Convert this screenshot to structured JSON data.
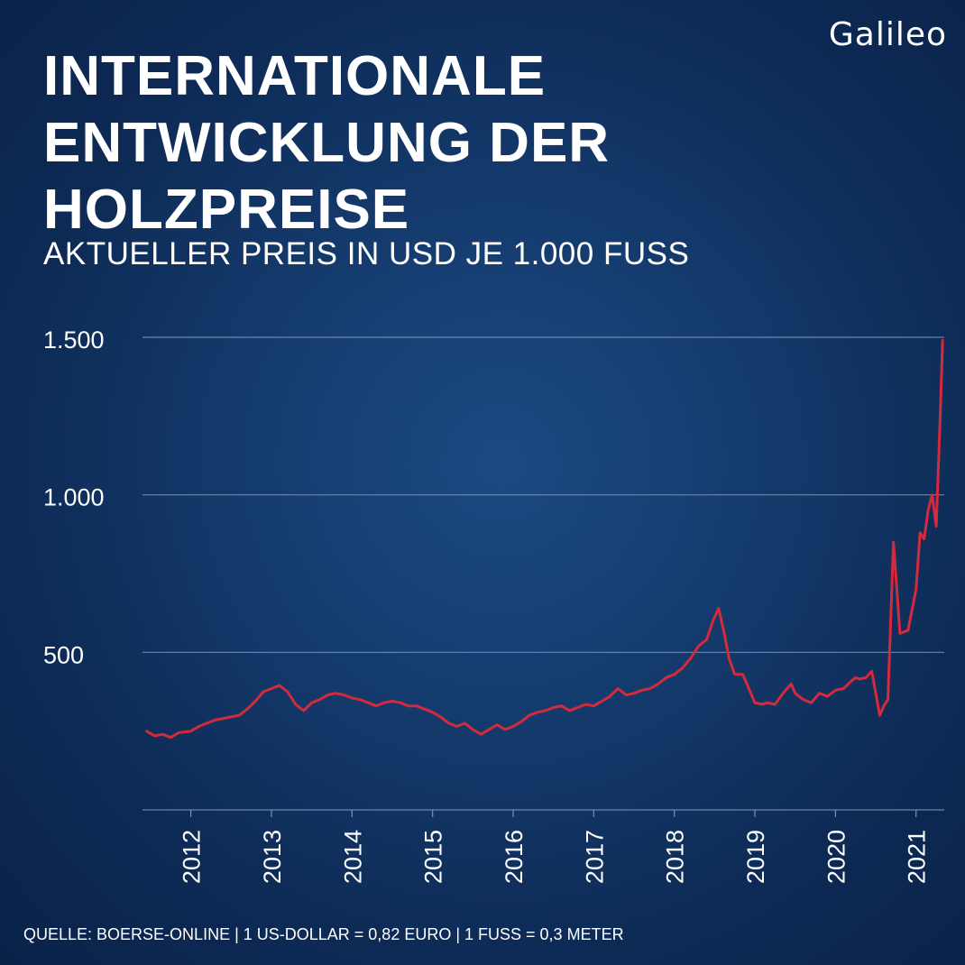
{
  "brand": {
    "logo_text": "Galileo"
  },
  "header": {
    "title_lines": [
      "INTERNATIONALE",
      "ENTWICKLUNG DER",
      "HOLZPREISE"
    ],
    "subtitle": "AKTUELLER PREIS IN USD JE 1.000 FUSS"
  },
  "footer": {
    "source": "QUELLE: BOERSE-ONLINE | 1 US-DOLLAR = 0,82 EURO | 1 FUSS = 0,3 METER"
  },
  "colors": {
    "line": "#d42a3c",
    "grid": "#8aa2c4",
    "text": "#ffffff"
  },
  "chart_data": {
    "type": "line",
    "title": "INTERNATIONALE ENTWICKLUNG DER HOLZPREISE",
    "subtitle": "AKTUELLER PREIS IN USD JE 1.000 FUSS",
    "xlabel": "",
    "ylabel": "",
    "xlim": [
      2011.4,
      2021.35
    ],
    "ylim": [
      0,
      1500
    ],
    "grid": true,
    "y_ticks": [
      {
        "value": 500,
        "label": "500"
      },
      {
        "value": 1000,
        "label": "1.000"
      },
      {
        "value": 1500,
        "label": "1.500"
      }
    ],
    "x_ticks": [
      {
        "value": 2012,
        "label": "2012"
      },
      {
        "value": 2013,
        "label": "2013"
      },
      {
        "value": 2014,
        "label": "2014"
      },
      {
        "value": 2015,
        "label": "2015"
      },
      {
        "value": 2016,
        "label": "2016"
      },
      {
        "value": 2017,
        "label": "2017"
      },
      {
        "value": 2018,
        "label": "2018"
      },
      {
        "value": 2019,
        "label": "2019"
      },
      {
        "value": 2020,
        "label": "2020"
      },
      {
        "value": 2021,
        "label": "2021"
      }
    ],
    "series": [
      {
        "x": [
          2011.45,
          2011.55,
          2011.65,
          2011.75,
          2011.85,
          2012.0,
          2012.1,
          2012.2,
          2012.3,
          2012.4,
          2012.5,
          2012.6,
          2012.7,
          2012.8,
          2012.9,
          2013.0,
          2013.1,
          2013.2,
          2013.3,
          2013.4,
          2013.5,
          2013.6,
          2013.7,
          2013.8,
          2013.9,
          2014.0,
          2014.1,
          2014.2,
          2014.3,
          2014.4,
          2014.5,
          2014.6,
          2014.7,
          2014.8,
          2014.9,
          2015.0,
          2015.1,
          2015.2,
          2015.3,
          2015.4,
          2015.5,
          2015.6,
          2015.7,
          2015.8,
          2015.9,
          2016.0,
          2016.1,
          2016.2,
          2016.3,
          2016.4,
          2016.5,
          2016.6,
          2016.7,
          2016.8,
          2016.9,
          2017.0,
          2017.1,
          2017.2,
          2017.3,
          2017.4,
          2017.5,
          2017.6,
          2017.7,
          2017.8,
          2017.9,
          2018.0,
          2018.1,
          2018.2,
          2018.3,
          2018.4,
          2018.48,
          2018.55,
          2018.62,
          2018.68,
          2018.75,
          2018.85,
          2019.0,
          2019.1,
          2019.15,
          2019.25,
          2019.35,
          2019.45,
          2019.5,
          2019.6,
          2019.7,
          2019.8,
          2019.9,
          2020.0,
          2020.1,
          2020.2,
          2020.25,
          2020.3,
          2020.38,
          2020.45,
          2020.55,
          2020.6,
          2020.65,
          2020.72,
          2020.8,
          2020.9,
          2021.0,
          2021.05,
          2021.1,
          2021.15,
          2021.2,
          2021.25,
          2021.3,
          2021.33
        ],
        "values": [
          250,
          235,
          240,
          230,
          245,
          250,
          265,
          275,
          285,
          290,
          295,
          300,
          320,
          345,
          375,
          385,
          395,
          375,
          335,
          315,
          340,
          350,
          365,
          370,
          365,
          355,
          350,
          340,
          330,
          340,
          345,
          340,
          330,
          330,
          320,
          310,
          295,
          275,
          265,
          275,
          255,
          240,
          255,
          270,
          255,
          265,
          280,
          300,
          310,
          315,
          325,
          330,
          315,
          325,
          335,
          330,
          345,
          360,
          385,
          365,
          370,
          380,
          385,
          400,
          420,
          430,
          450,
          480,
          520,
          540,
          600,
          640,
          560,
          480,
          430,
          430,
          340,
          335,
          340,
          335,
          370,
          400,
          370,
          350,
          340,
          370,
          360,
          380,
          385,
          410,
          420,
          415,
          420,
          440,
          300,
          330,
          350,
          850,
          560,
          570,
          700,
          880,
          860,
          950,
          1000,
          900,
          1250,
          1490
        ]
      }
    ]
  }
}
